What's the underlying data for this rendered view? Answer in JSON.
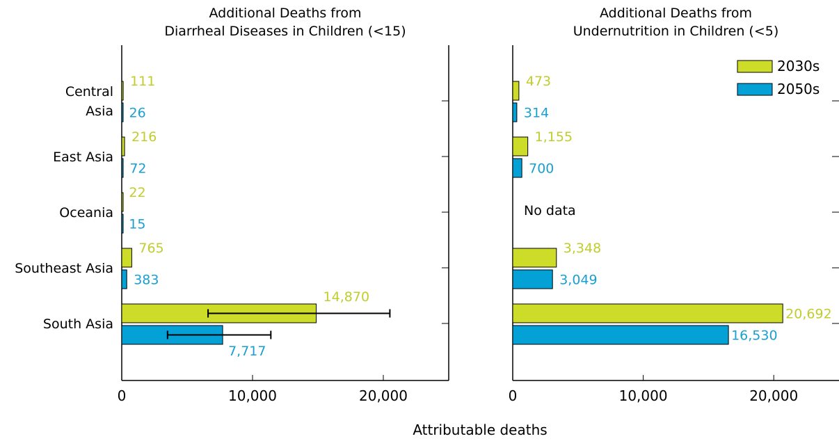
{
  "chart_data": [
    {
      "type": "bar",
      "orientation": "horizontal",
      "title": "Additional Deaths from\nDiarrheal Diseases in Children (<15)",
      "categories": [
        "Central\nAsia",
        "East Asia",
        "Oceania",
        "Southeast Asia",
        "South Asia"
      ],
      "series": [
        {
          "name": "2030s",
          "values": [
            111,
            216,
            22,
            765,
            14870
          ],
          "labels": [
            "111",
            "216",
            "22",
            "765",
            "14,870"
          ],
          "error_bars": [
            null,
            null,
            null,
            null,
            [
              6600,
              20500
            ]
          ]
        },
        {
          "name": "2050s",
          "values": [
            26,
            72,
            15,
            383,
            7717
          ],
          "labels": [
            "26",
            "72",
            "15",
            "383",
            "7,717"
          ],
          "error_bars": [
            null,
            null,
            null,
            null,
            [
              3500,
              11400
            ]
          ]
        }
      ],
      "xlim": [
        0,
        25000
      ],
      "xticks": [
        0,
        10000,
        20000
      ],
      "xtick_labels": [
        "0",
        "10,000",
        "20,000"
      ],
      "category_labels_shown": true
    },
    {
      "type": "bar",
      "orientation": "horizontal",
      "title": "Additional Deaths from\nUndernutrition in Children (<5)",
      "categories": [
        "Central\nAsia",
        "East Asia",
        "Oceania",
        "Southeast Asia",
        "South Asia"
      ],
      "series": [
        {
          "name": "2030s",
          "values": [
            473,
            1155,
            null,
            3348,
            20692
          ],
          "labels": [
            "473",
            "1,155",
            "",
            "3,348",
            "20,692"
          ]
        },
        {
          "name": "2050s",
          "values": [
            314,
            700,
            null,
            3049,
            16530
          ],
          "labels": [
            "314",
            "700",
            "",
            "3,049",
            "16,530"
          ]
        }
      ],
      "missing_note": "No data",
      "missing_index": 2,
      "xlim": [
        0,
        25000
      ],
      "xticks": [
        0,
        10000,
        20000
      ],
      "xtick_labels": [
        "0",
        "10,000",
        "20,000"
      ],
      "category_labels_shown": false,
      "legend": {
        "position": "top-right",
        "entries": [
          "2030s",
          "2050s"
        ]
      }
    }
  ],
  "xlabel": "Attributable deaths",
  "colors": {
    "2030s": "#cddc29",
    "2050s": "#04a1d6",
    "label_2030s": "#c1cd2c",
    "label_2050s": "#1a9fd2"
  }
}
